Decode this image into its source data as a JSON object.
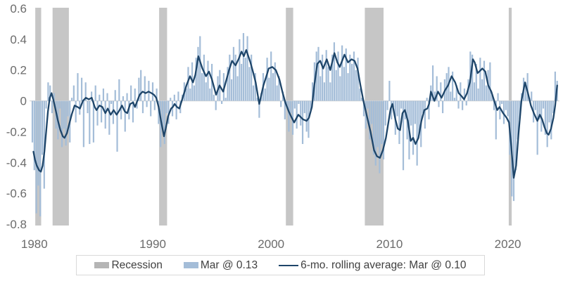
{
  "chart_data": {
    "type": "bar+line",
    "title": "",
    "xlabel": "",
    "ylabel": "",
    "x_axis": {
      "range": [
        1979.6,
        2024.4
      ],
      "ticks": [
        1980,
        1990,
        2000,
        2010,
        2020
      ],
      "tick_labels": [
        "1980",
        "1990",
        "2000",
        "2010",
        "2020"
      ]
    },
    "y_axis": {
      "range": [
        -0.8,
        0.6
      ],
      "ticks": [
        0.6,
        0.4,
        0.2,
        0,
        -0.2,
        -0.4,
        -0.6,
        -0.8
      ],
      "tick_labels": [
        "0.6",
        "0.4",
        "0.2",
        "0",
        "-0.2",
        "-0.4",
        "-0.6",
        "-0.8"
      ]
    },
    "grid": "zero-line-only",
    "legend_position": "bottom",
    "legend": {
      "recession_label": "Recession",
      "bars_label": "Mar @ 0.13",
      "line_label": "6-mo. rolling average: Mar @ 0.10"
    },
    "latest_values": {
      "bar_month": "Mar",
      "bar_value": 0.13,
      "rolling_avg_value": 0.1
    },
    "recessions": [
      [
        1980.08,
        1980.58
      ],
      [
        1981.54,
        1982.92
      ],
      [
        1990.54,
        1991.21
      ],
      [
        2001.25,
        2001.87
      ],
      [
        2007.92,
        2009.5
      ],
      [
        2020.08,
        2020.33
      ]
    ],
    "bars": {
      "name": "Mar @ 0.13",
      "t_start": 1979.8333,
      "t_step": 0.166667,
      "values": [
        -0.27,
        -0.45,
        -0.73,
        -0.55,
        -0.75,
        -0.35,
        -0.57,
        -0.05,
        0.12,
        0.1,
        -0.08,
        0.05,
        -0.18,
        -0.25,
        -0.05,
        -0.3,
        -0.18,
        -0.29,
        -0.1,
        -0.27,
        0.02,
        0.1,
        -0.14,
        0.18,
        -0.09,
        0.15,
        -0.3,
        0.12,
        -0.08,
        -0.28,
        0.06,
        -0.27,
        0.1,
        -0.16,
        0.04,
        -0.14,
        0.08,
        -0.18,
        0.05,
        -0.22,
        -0.02,
        -0.15,
        0.07,
        -0.33,
        0.14,
        -0.12,
        0.03,
        -0.2,
        0.05,
        -0.12,
        0.1,
        -0.14,
        0.08,
        -0.05,
        0.15,
        0.2,
        -0.08,
        0.16,
        -0.04,
        0.13,
        -0.1,
        0.12,
        -0.06,
        0.08,
        -0.15,
        -0.3,
        -0.18,
        -0.28,
        -0.08,
        -0.15,
        0.02,
        -0.1,
        0.04,
        -0.12,
        0.06,
        -0.08,
        0.04,
        0.12,
        0.08,
        0.22,
        0.08,
        0.25,
        0.1,
        0.28,
        0.35,
        0.42,
        0.18,
        0.3,
        0.12,
        0.26,
        0.08,
        0.24,
        0.04,
        -0.06,
        0.16,
        0.2,
        -0.02,
        0.18,
        0.02,
        0.22,
        0.3,
        0.14,
        0.35,
        0.3,
        0.16,
        0.4,
        0.24,
        0.44,
        0.28,
        0.42,
        0.22,
        0.3,
        0.1,
        0.18,
        0.02,
        -0.11,
        0.05,
        0.18,
        0.08,
        0.28,
        0.15,
        0.32,
        0.18,
        0.25,
        0.1,
        0.16,
        -0.04,
        0.06,
        -0.12,
        -0.04,
        -0.2,
        -0.08,
        -0.22,
        -0.05,
        -0.18,
        -0.02,
        -0.16,
        -0.28,
        -0.08,
        -0.2,
        -0.24,
        -0.06,
        0.12,
        0.25,
        0.32,
        0.35,
        0.16,
        0.3,
        0.12,
        0.33,
        0.22,
        0.12,
        0.3,
        0.38,
        0.2,
        0.32,
        0.16,
        0.36,
        0.22,
        0.34,
        0.18,
        0.3,
        0.24,
        0.32,
        0.2,
        0.28,
        0.08,
        0.02,
        -0.1,
        -0.18,
        -0.05,
        -0.25,
        -0.15,
        -0.35,
        -0.42,
        -0.3,
        -0.47,
        -0.28,
        -0.38,
        -0.16,
        -0.06,
        0.13,
        -0.12,
        -0.04,
        -0.22,
        -0.1,
        -0.28,
        -0.05,
        -0.45,
        -0.12,
        -0.25,
        -0.38,
        -0.16,
        -0.35,
        -0.15,
        -0.42,
        -0.22,
        -0.3,
        -0.08,
        -0.18,
        0.02,
        -0.12,
        0.1,
        0.23,
        0.06,
        0.16,
        -0.04,
        0.12,
        -0.08,
        0.14,
        0.18,
        0.22,
        0.06,
        0.19,
        0.02,
        0.1,
        -0.05,
        0.12,
        -0.06,
        0.08,
        -0.03,
        0.14,
        0.32,
        0.3,
        0.12,
        0.24,
        0.08,
        0.28,
        0.14,
        0.26,
        0.1,
        0.2,
        0.25,
        0.04,
        -0.06,
        -0.25,
        0.05,
        -0.12,
        -0.02,
        -0.15,
        -0.06,
        -0.1,
        -0.35,
        -0.62,
        -0.65,
        -0.45,
        -0.25,
        -0.12,
        0.05,
        0.15,
        0.12,
        0.18,
        0.02,
        0.06,
        -0.14,
        -0.06,
        -0.35,
        -0.12,
        -0.2,
        -0.05,
        -0.22,
        -0.3,
        -0.14,
        -0.25,
        -0.08,
        0.19,
        0.13
      ]
    },
    "line": {
      "name": "6-mo. rolling average: Mar @ 0.10",
      "points": [
        [
          1979.92,
          -0.33
        ],
        [
          1980.05,
          -0.38
        ],
        [
          1980.2,
          -0.42
        ],
        [
          1980.4,
          -0.45
        ],
        [
          1980.55,
          -0.46
        ],
        [
          1980.7,
          -0.42
        ],
        [
          1980.85,
          -0.33
        ],
        [
          1981.0,
          -0.2
        ],
        [
          1981.15,
          -0.07
        ],
        [
          1981.3,
          0.02
        ],
        [
          1981.45,
          0.05
        ],
        [
          1981.6,
          0.01
        ],
        [
          1981.8,
          -0.06
        ],
        [
          1982.0,
          -0.13
        ],
        [
          1982.2,
          -0.19
        ],
        [
          1982.4,
          -0.23
        ],
        [
          1982.55,
          -0.24
        ],
        [
          1982.75,
          -0.21
        ],
        [
          1982.95,
          -0.15
        ],
        [
          1983.15,
          -0.09
        ],
        [
          1983.4,
          -0.03
        ],
        [
          1983.65,
          -0.04
        ],
        [
          1983.85,
          -0.05
        ],
        [
          1984.1,
          0.0
        ],
        [
          1984.35,
          0.02
        ],
        [
          1984.6,
          0.01
        ],
        [
          1984.85,
          0.02
        ],
        [
          1985.1,
          -0.04
        ],
        [
          1985.25,
          -0.06
        ],
        [
          1985.5,
          -0.03
        ],
        [
          1985.75,
          -0.04
        ],
        [
          1986.0,
          -0.08
        ],
        [
          1986.2,
          -0.05
        ],
        [
          1986.45,
          -0.09
        ],
        [
          1986.7,
          -0.06
        ],
        [
          1986.95,
          -0.09
        ],
        [
          1987.2,
          -0.06
        ],
        [
          1987.4,
          -0.03
        ],
        [
          1987.65,
          -0.07
        ],
        [
          1987.85,
          -0.08
        ],
        [
          1988.1,
          -0.02
        ],
        [
          1988.35,
          -0.01
        ],
        [
          1988.5,
          -0.04
        ],
        [
          1988.7,
          0.0
        ],
        [
          1988.9,
          0.04
        ],
        [
          1989.15,
          0.06
        ],
        [
          1989.4,
          0.05
        ],
        [
          1989.65,
          0.06
        ],
        [
          1989.9,
          0.05
        ],
        [
          1990.1,
          0.04
        ],
        [
          1990.3,
          0.02
        ],
        [
          1990.5,
          -0.04
        ],
        [
          1990.7,
          -0.13
        ],
        [
          1990.95,
          -0.23
        ],
        [
          1991.1,
          -0.18
        ],
        [
          1991.3,
          -0.1
        ],
        [
          1991.55,
          -0.05
        ],
        [
          1991.7,
          -0.04
        ],
        [
          1991.85,
          -0.02
        ],
        [
          1992.05,
          -0.04
        ],
        [
          1992.25,
          -0.05
        ],
        [
          1992.45,
          0.0
        ],
        [
          1992.65,
          0.05
        ],
        [
          1992.85,
          0.1
        ],
        [
          1993.15,
          0.16
        ],
        [
          1993.4,
          0.12
        ],
        [
          1993.6,
          0.17
        ],
        [
          1993.85,
          0.29
        ],
        [
          1994.2,
          0.21
        ],
        [
          1994.5,
          0.16
        ],
        [
          1994.75,
          0.19
        ],
        [
          1995.0,
          0.14
        ],
        [
          1995.35,
          0.04
        ],
        [
          1995.65,
          0.1
        ],
        [
          1995.95,
          0.06
        ],
        [
          1996.2,
          0.13
        ],
        [
          1996.45,
          0.2
        ],
        [
          1996.7,
          0.26
        ],
        [
          1997.0,
          0.23
        ],
        [
          1997.25,
          0.27
        ],
        [
          1997.5,
          0.32
        ],
        [
          1997.7,
          0.29
        ],
        [
          1997.9,
          0.33
        ],
        [
          1998.25,
          0.25
        ],
        [
          1998.5,
          0.18
        ],
        [
          1998.7,
          0.12
        ],
        [
          1999.0,
          -0.02
        ],
        [
          1999.35,
          0.1
        ],
        [
          1999.6,
          0.16
        ],
        [
          1999.8,
          0.21
        ],
        [
          2000.1,
          0.22
        ],
        [
          2000.4,
          0.2
        ],
        [
          2000.7,
          0.14
        ],
        [
          2000.95,
          0.06
        ],
        [
          2001.2,
          -0.01
        ],
        [
          2001.5,
          -0.07
        ],
        [
          2001.75,
          -0.11
        ],
        [
          2001.95,
          -0.14
        ],
        [
          2002.3,
          -0.09
        ],
        [
          2002.7,
          -0.12
        ],
        [
          2003.0,
          -0.13
        ],
        [
          2003.2,
          -0.11
        ],
        [
          2003.45,
          -0.04
        ],
        [
          2003.65,
          0.1
        ],
        [
          2003.9,
          0.24
        ],
        [
          2004.15,
          0.26
        ],
        [
          2004.4,
          0.21
        ],
        [
          2004.7,
          0.27
        ],
        [
          2005.0,
          0.2
        ],
        [
          2005.35,
          0.31
        ],
        [
          2005.6,
          0.25
        ],
        [
          2005.8,
          0.22
        ],
        [
          2006.2,
          0.3
        ],
        [
          2006.5,
          0.25
        ],
        [
          2006.8,
          0.27
        ],
        [
          2007.05,
          0.26
        ],
        [
          2007.3,
          0.21
        ],
        [
          2007.55,
          0.1
        ],
        [
          2007.8,
          0.0
        ],
        [
          2008.1,
          -0.1
        ],
        [
          2008.4,
          -0.2
        ],
        [
          2008.7,
          -0.32
        ],
        [
          2008.95,
          -0.36
        ],
        [
          2009.2,
          -0.37
        ],
        [
          2009.45,
          -0.32
        ],
        [
          2009.7,
          -0.24
        ],
        [
          2009.95,
          -0.12
        ],
        [
          2010.1,
          -0.05
        ],
        [
          2010.25,
          -0.02
        ],
        [
          2010.5,
          -0.12
        ],
        [
          2010.7,
          -0.18
        ],
        [
          2010.9,
          -0.19
        ],
        [
          2011.1,
          -0.08
        ],
        [
          2011.3,
          -0.06
        ],
        [
          2011.55,
          -0.13
        ],
        [
          2011.8,
          -0.26
        ],
        [
          2012.0,
          -0.24
        ],
        [
          2012.2,
          -0.28
        ],
        [
          2012.45,
          -0.24
        ],
        [
          2012.7,
          -0.13
        ],
        [
          2012.95,
          -0.06
        ],
        [
          2013.2,
          -0.05
        ],
        [
          2013.35,
          -0.02
        ],
        [
          2013.5,
          0.06
        ],
        [
          2013.8,
          0.0
        ],
        [
          2014.1,
          0.06
        ],
        [
          2014.4,
          0.02
        ],
        [
          2014.7,
          0.07
        ],
        [
          2014.95,
          0.1
        ],
        [
          2015.25,
          0.16
        ],
        [
          2015.55,
          0.12
        ],
        [
          2015.85,
          0.05
        ],
        [
          2016.1,
          0.03
        ],
        [
          2016.3,
          0.01
        ],
        [
          2016.55,
          0.05
        ],
        [
          2016.8,
          0.12
        ],
        [
          2017.05,
          0.27
        ],
        [
          2017.2,
          0.25
        ],
        [
          2017.45,
          0.18
        ],
        [
          2017.85,
          0.21
        ],
        [
          2018.1,
          0.19
        ],
        [
          2018.35,
          0.1
        ],
        [
          2018.6,
          0.06
        ],
        [
          2018.85,
          0.0
        ],
        [
          2019.1,
          -0.06
        ],
        [
          2019.3,
          -0.04
        ],
        [
          2019.6,
          -0.08
        ],
        [
          2019.9,
          -0.11
        ],
        [
          2020.1,
          -0.14
        ],
        [
          2020.3,
          -0.3
        ],
        [
          2020.5,
          -0.5
        ],
        [
          2020.7,
          -0.42
        ],
        [
          2020.9,
          -0.22
        ],
        [
          2021.15,
          0.0
        ],
        [
          2021.45,
          0.12
        ],
        [
          2021.7,
          0.05
        ],
        [
          2021.95,
          -0.03
        ],
        [
          2022.2,
          -0.08
        ],
        [
          2022.5,
          -0.13
        ],
        [
          2022.7,
          -0.09
        ],
        [
          2022.9,
          -0.12
        ],
        [
          2023.1,
          -0.17
        ],
        [
          2023.3,
          -0.21
        ],
        [
          2023.45,
          -0.22
        ],
        [
          2023.65,
          -0.18
        ],
        [
          2023.85,
          -0.11
        ],
        [
          2024.0,
          -0.03
        ],
        [
          2024.17,
          0.1
        ]
      ]
    },
    "colors": {
      "bars": "#a4bdd8",
      "line": "#1e4569",
      "recession": "#c6c6c6",
      "legend_recession_swatch": "#b5b5b5",
      "zero_line": "#d9d9d9",
      "axis_text": "#6b6b6b",
      "legend_text": "#3f3f3f",
      "legend_border": "#d9d9d9",
      "background": "#ffffff"
    }
  }
}
